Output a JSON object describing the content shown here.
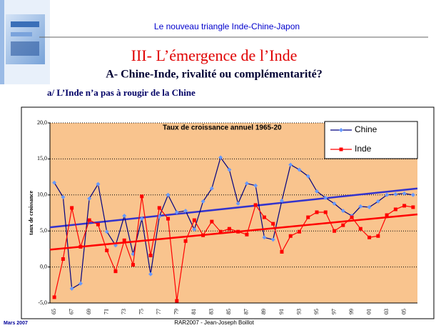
{
  "header": {
    "topic": "Le nouveau triangle Inde-Chine-Japon",
    "title": "III- L’émergence de l’Inde",
    "subtitle": "A- Chine-Inde, rivalité ou complémentarité?",
    "section": "a/ L’Inde n’a pas à rougir de la Chine"
  },
  "footer": {
    "date": "Mars 2007",
    "author": "RAR2007 - Jean-Joseph Boillot"
  },
  "chart_data": {
    "type": "line",
    "title": "Taux de croissance annuel 1965-20",
    "ylabel": "taux de croissance",
    "categories": [
      "65",
      null,
      "67",
      null,
      "69",
      null,
      "71",
      null,
      "73",
      null,
      "75",
      null,
      "77",
      null,
      "79",
      null,
      "81",
      null,
      "83",
      null,
      "85",
      null,
      "87",
      null,
      "89",
      null,
      "91",
      null,
      "93",
      null,
      "95",
      null,
      "97",
      null,
      "99",
      null,
      "01",
      null,
      "03",
      null,
      "05",
      null
    ],
    "series": [
      {
        "name": "Chine",
        "color": "#000080",
        "marker_color": "#6699ff",
        "trend_color": "#3333cc",
        "trend": [
          5.5,
          10.9
        ],
        "values": [
          11.7,
          9.7,
          -3.0,
          -2.3,
          9.5,
          11.5,
          4.9,
          3.0,
          7.1,
          1.8,
          6.7,
          -1.0,
          7.0,
          10.0,
          7.6,
          7.8,
          5.2,
          9.1,
          10.9,
          15.2,
          13.5,
          8.8,
          11.6,
          11.3,
          4.1,
          3.8,
          9.2,
          14.2,
          13.5,
          12.6,
          10.5,
          9.6,
          8.8,
          7.8,
          7.1,
          8.4,
          8.3,
          9.1,
          10.0,
          10.1,
          10.2,
          10.0
        ]
      },
      {
        "name": "Inde",
        "color": "#ff0000",
        "marker_color": "#ff0000",
        "trend_color": "#ff0000",
        "trend": [
          2.4,
          7.3
        ],
        "values": [
          -4.2,
          1.1,
          8.2,
          2.8,
          6.5,
          5.9,
          2.3,
          -0.6,
          3.7,
          0.3,
          9.8,
          1.6,
          8.2,
          6.7,
          -4.7,
          3.6,
          6.5,
          4.4,
          6.3,
          4.9,
          5.3,
          4.9,
          4.5,
          8.6,
          6.9,
          6.0,
          2.1,
          4.3,
          4.9,
          6.9,
          7.6,
          7.6,
          5.0,
          5.8,
          6.9,
          5.3,
          4.1,
          4.3,
          7.2,
          8.0,
          8.5,
          8.3
        ]
      }
    ],
    "ylim": [
      -5,
      20
    ],
    "yticks": [
      {
        "value": -5,
        "label": "-5,0"
      },
      {
        "value": 0,
        "label": "0,0"
      },
      {
        "value": 5,
        "label": "5,0"
      },
      {
        "value": 10,
        "label": "10,0"
      },
      {
        "value": 15,
        "label": "15,0"
      },
      {
        "value": 20,
        "label": "20,0"
      }
    ],
    "grid": true,
    "legend": "top-right",
    "plot_color": "#f9c48e"
  }
}
